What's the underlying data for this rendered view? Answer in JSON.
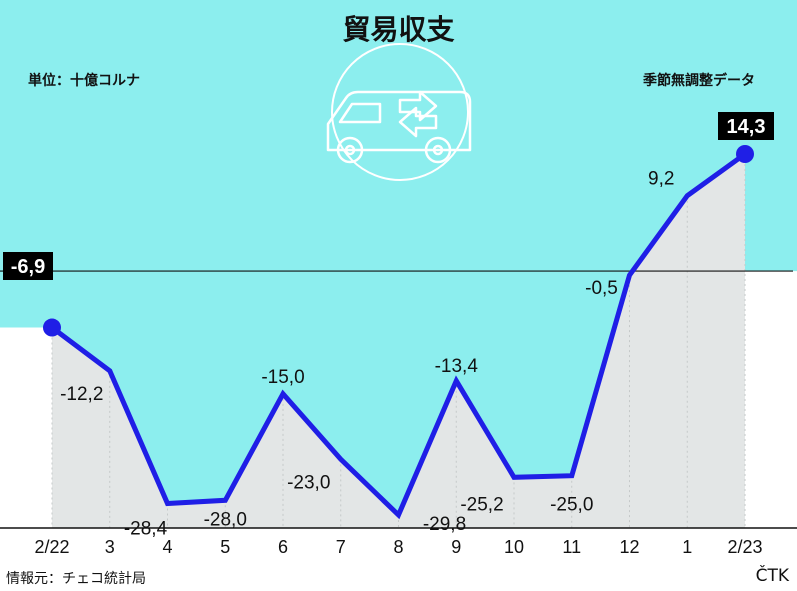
{
  "title": "貿易収支",
  "unit_label": "単位：十億コルナ",
  "adjust_label": "季節無調整データ",
  "source_label": "情報元：チェコ統計局",
  "brand": "ČTK",
  "colors": {
    "sky": "#8ceeee",
    "line": "#1f1fe6",
    "area": "#e3e6e6",
    "zero_line": "#111111",
    "badge": "#000000"
  },
  "icon": "delivery-van-exchange-arrows-icon",
  "chart_data": {
    "type": "line",
    "title": "貿易収支",
    "categories": [
      "2/22",
      "3",
      "4",
      "5",
      "6",
      "7",
      "8",
      "9",
      "10",
      "11",
      "12",
      "1",
      "2/23"
    ],
    "series": [
      {
        "values": [
          -6.9,
          -12.2,
          -28.4,
          -28.0,
          -15.0,
          -23.0,
          -29.8,
          -13.4,
          -25.2,
          -25.0,
          -0.5,
          9.2,
          14.3
        ],
        "labels": [
          "-6,9",
          "-12,2",
          "-28,4",
          "-28,0",
          "-15,0",
          "-23,0",
          "-29,8",
          "-13,4",
          "-25,2",
          "-25,0",
          "-0,5",
          "9,2",
          "14,3"
        ]
      }
    ],
    "ylim": [
      -31,
      14.5
    ],
    "zero_line": true,
    "grid": false,
    "legend": "none"
  }
}
